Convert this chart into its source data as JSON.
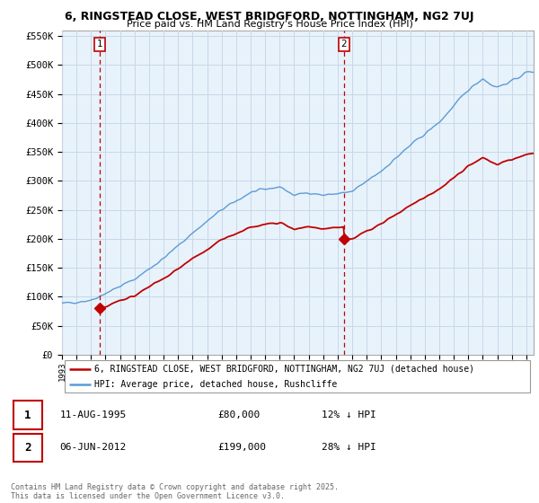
{
  "title_line1": "6, RINGSTEAD CLOSE, WEST BRIDGFORD, NOTTINGHAM, NG2 7UJ",
  "title_line2": "Price paid vs. HM Land Registry's House Price Index (HPI)",
  "ylabel_ticks": [
    "£0",
    "£50K",
    "£100K",
    "£150K",
    "£200K",
    "£250K",
    "£300K",
    "£350K",
    "£400K",
    "£450K",
    "£500K",
    "£550K"
  ],
  "ytick_values": [
    0,
    50000,
    100000,
    150000,
    200000,
    250000,
    300000,
    350000,
    400000,
    450000,
    500000,
    550000
  ],
  "ylim": [
    0,
    560000
  ],
  "xlim_start": 1993,
  "xlim_end": 2025.5,
  "hpi_color": "#5b9bd5",
  "hpi_fill_color": "#daeaf7",
  "price_color": "#c00000",
  "marker1_year": 1995.62,
  "marker1_price": 80000,
  "marker2_year": 2012.43,
  "marker2_price": 199000,
  "vline1_year": 1995.62,
  "vline2_year": 2012.43,
  "legend_label1": "6, RINGSTEAD CLOSE, WEST BRIDGFORD, NOTTINGHAM, NG2 7UJ (detached house)",
  "legend_label2": "HPI: Average price, detached house, Rushcliffe",
  "table_row1": [
    "1",
    "11-AUG-1995",
    "£80,000",
    "12% ↓ HPI"
  ],
  "table_row2": [
    "2",
    "06-JUN-2012",
    "£199,000",
    "28% ↓ HPI"
  ],
  "footer": "Contains HM Land Registry data © Crown copyright and database right 2025.\nThis data is licensed under the Open Government Licence v3.0.",
  "grid_color": "#c8d8e8",
  "bg_plot_color": "#e8f2fb",
  "hatch_bg_color": "#d8d8d8"
}
